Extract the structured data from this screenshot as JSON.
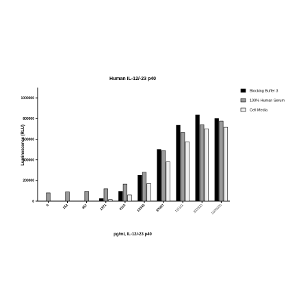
{
  "chart_data": {
    "type": "bar",
    "title": "Human IL-12/-23 p40",
    "xlabel": "pg/ml, IL-12/-23 p40",
    "ylabel": "Luminescence (RLU)",
    "ylim": [
      0,
      1100000
    ],
    "yticks": [
      0,
      200000,
      400000,
      600000,
      800000,
      1000000
    ],
    "ytick_labels": [
      "0",
      "200000",
      "400000",
      "600000",
      "800000",
      "1000000"
    ],
    "categories": [
      "0",
      "152",
      "457",
      "1371",
      "4115",
      "12345",
      "37037",
      "111111",
      "333333",
      "1000000"
    ],
    "legend_position": "right",
    "grid": false,
    "series": [
      {
        "name": "Blocking Buffer 3",
        "color": "#000000",
        "values": [
          null,
          null,
          null,
          25000,
          95000,
          250000,
          500000,
          735000,
          835000,
          800000
        ]
      },
      {
        "name": "100% Human Serum",
        "color": "#9a9a9a",
        "values": [
          80000,
          90000,
          95000,
          120000,
          165000,
          280000,
          490000,
          665000,
          740000,
          775000
        ]
      },
      {
        "name": "Cell Media",
        "color": "#eeeeee",
        "values": [
          null,
          null,
          null,
          15000,
          60000,
          170000,
          380000,
          575000,
          700000,
          715000
        ]
      }
    ]
  }
}
